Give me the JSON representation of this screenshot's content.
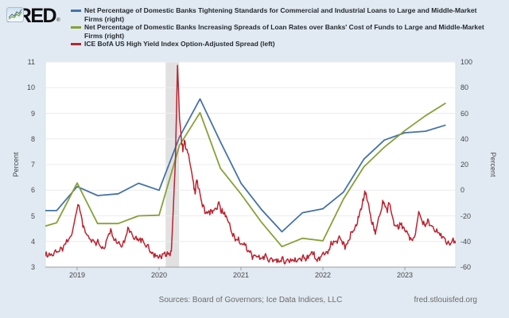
{
  "logo": {
    "text": "FRED",
    "registered": "®"
  },
  "footer": {
    "sources": "Sources: Board of Governors; Ice Data Indices, LLC",
    "site": "fred.stlouisfed.org"
  },
  "chart_data": {
    "type": "line",
    "x_domain": [
      2018.612,
      2023.621
    ],
    "x_ticks": [
      {
        "label": "2019",
        "t": 2019
      },
      {
        "label": "2020",
        "t": 2020
      },
      {
        "label": "2021",
        "t": 2021
      },
      {
        "label": "2022",
        "t": 2022
      },
      {
        "label": "2023",
        "t": 2023
      }
    ],
    "left_axis": {
      "title": "Percent",
      "min": 3,
      "max": 11,
      "ticks": [
        11,
        10,
        9,
        8,
        7,
        6,
        5,
        4,
        3
      ]
    },
    "right_axis": {
      "title": "Percent",
      "min": -60,
      "max": 100,
      "ticks": [
        100,
        80,
        60,
        40,
        20,
        0,
        -20,
        -40,
        -60
      ]
    },
    "recession_band": {
      "from": 2020.08,
      "to": 2020.245
    },
    "grid": true,
    "legend_position": "top",
    "series": [
      {
        "label": "Net Percentage of Domestic Banks Tightening Standards for Commercial and Industrial Loans to Large and Middle-Market Firms (right)",
        "color": "#4572a7",
        "axis": "right",
        "width": 1.8,
        "data": [
          [
            2018.61,
            -15.9
          ],
          [
            2018.75,
            -15.9
          ],
          [
            2019.0,
            2.8
          ],
          [
            2019.25,
            -4.2
          ],
          [
            2019.5,
            -2.8
          ],
          [
            2019.75,
            5.4
          ],
          [
            2020.0,
            0.0
          ],
          [
            2020.25,
            41.5
          ],
          [
            2020.5,
            71.2
          ],
          [
            2020.75,
            37.7
          ],
          [
            2021.0,
            5.5
          ],
          [
            2021.25,
            -15.1
          ],
          [
            2021.5,
            -32.4
          ],
          [
            2021.75,
            -17.6
          ],
          [
            2022.0,
            -14.5
          ],
          [
            2022.25,
            -1.5
          ],
          [
            2022.5,
            24.2
          ],
          [
            2022.75,
            39.1
          ],
          [
            2023.0,
            44.8
          ],
          [
            2023.25,
            46.0
          ],
          [
            2023.5,
            50.8
          ]
        ]
      },
      {
        "label": "Net Percentage of Domestic Banks Increasing Spreads of Loan Rates over Banks' Cost of Funds to Large and Middle-Market Firms (right)",
        "color": "#86a137",
        "axis": "right",
        "width": 1.8,
        "data": [
          [
            2018.61,
            -28
          ],
          [
            2018.75,
            -25.4
          ],
          [
            2019.0,
            5.6
          ],
          [
            2019.25,
            -26
          ],
          [
            2019.5,
            -26
          ],
          [
            2019.75,
            -20
          ],
          [
            2020.0,
            -19.5
          ],
          [
            2020.25,
            35
          ],
          [
            2020.5,
            60.5
          ],
          [
            2020.75,
            17
          ],
          [
            2021.0,
            -3
          ],
          [
            2021.25,
            -25
          ],
          [
            2021.5,
            -44
          ],
          [
            2021.75,
            -37.5
          ],
          [
            2022.0,
            -39.5
          ],
          [
            2022.25,
            -7
          ],
          [
            2022.5,
            18.2
          ],
          [
            2022.75,
            33.6
          ],
          [
            2023.0,
            46.5
          ],
          [
            2023.25,
            58
          ],
          [
            2023.5,
            68
          ]
        ]
      },
      {
        "label": "ICE BofA US High Yield Index Option-Adjusted Spread (left)",
        "color": "#bc2330",
        "axis": "left",
        "width": 1.5,
        "jitter": 0.05,
        "data": [
          [
            2018.61,
            3.42
          ],
          [
            2018.66,
            3.55
          ],
          [
            2018.71,
            3.45
          ],
          [
            2018.76,
            3.6
          ],
          [
            2018.81,
            3.75
          ],
          [
            2018.86,
            3.9
          ],
          [
            2018.91,
            4.15
          ],
          [
            2018.95,
            4.5
          ],
          [
            2019.01,
            5.44
          ],
          [
            2019.06,
            4.85
          ],
          [
            2019.1,
            4.35
          ],
          [
            2019.15,
            4.1
          ],
          [
            2019.2,
            4.05
          ],
          [
            2019.24,
            3.95
          ],
          [
            2019.29,
            3.78
          ],
          [
            2019.33,
            3.72
          ],
          [
            2019.38,
            4.25
          ],
          [
            2019.42,
            4.4
          ],
          [
            2019.46,
            4.05
          ],
          [
            2019.5,
            3.95
          ],
          [
            2019.54,
            3.78
          ],
          [
            2019.59,
            4.15
          ],
          [
            2019.63,
            4.5
          ],
          [
            2019.67,
            4.28
          ],
          [
            2019.71,
            4.15
          ],
          [
            2019.75,
            4.02
          ],
          [
            2019.79,
            4.12
          ],
          [
            2019.83,
            3.85
          ],
          [
            2019.88,
            3.68
          ],
          [
            2019.92,
            3.58
          ],
          [
            2019.96,
            3.42
          ],
          [
            2020.0,
            3.38
          ],
          [
            2020.04,
            3.52
          ],
          [
            2020.08,
            3.42
          ],
          [
            2020.12,
            3.55
          ],
          [
            2020.15,
            3.62
          ],
          [
            2020.17,
            5.0
          ],
          [
            2020.2,
            7.2
          ],
          [
            2020.225,
            10.87
          ],
          [
            2020.25,
            8.8
          ],
          [
            2020.27,
            8.1
          ],
          [
            2020.29,
            7.5
          ],
          [
            2020.31,
            7.95
          ],
          [
            2020.34,
            7.6
          ],
          [
            2020.38,
            7.0
          ],
          [
            2020.42,
            6.3
          ],
          [
            2020.44,
            5.85
          ],
          [
            2020.46,
            6.4
          ],
          [
            2020.49,
            6.05
          ],
          [
            2020.53,
            5.35
          ],
          [
            2020.57,
            5.1
          ],
          [
            2020.61,
            5.2
          ],
          [
            2020.65,
            5.1
          ],
          [
            2020.69,
            5.3
          ],
          [
            2020.73,
            5.55
          ],
          [
            2020.76,
            5.1
          ],
          [
            2020.8,
            5.15
          ],
          [
            2020.84,
            4.8
          ],
          [
            2020.88,
            4.4
          ],
          [
            2020.92,
            4.2
          ],
          [
            2020.96,
            4.05
          ],
          [
            2021.0,
            3.9
          ],
          [
            2021.04,
            3.95
          ],
          [
            2021.08,
            3.6
          ],
          [
            2021.13,
            3.5
          ],
          [
            2021.17,
            3.45
          ],
          [
            2021.21,
            3.4
          ],
          [
            2021.25,
            3.35
          ],
          [
            2021.29,
            3.45
          ],
          [
            2021.33,
            3.25
          ],
          [
            2021.38,
            3.32
          ],
          [
            2021.42,
            3.28
          ],
          [
            2021.46,
            3.2
          ],
          [
            2021.5,
            3.38
          ],
          [
            2021.54,
            3.14
          ],
          [
            2021.58,
            3.26
          ],
          [
            2021.63,
            3.3
          ],
          [
            2021.67,
            3.22
          ],
          [
            2021.71,
            3.32
          ],
          [
            2021.75,
            3.42
          ],
          [
            2021.79,
            3.24
          ],
          [
            2021.83,
            3.46
          ],
          [
            2021.87,
            3.6
          ],
          [
            2021.9,
            3.36
          ],
          [
            2021.94,
            3.34
          ],
          [
            2021.98,
            3.42
          ],
          [
            2022.03,
            3.52
          ],
          [
            2022.07,
            3.68
          ],
          [
            2022.11,
            3.88
          ],
          [
            2022.15,
            4.0
          ],
          [
            2022.2,
            4.22
          ],
          [
            2022.24,
            3.88
          ],
          [
            2022.28,
            3.86
          ],
          [
            2022.32,
            4.05
          ],
          [
            2022.36,
            4.35
          ],
          [
            2022.4,
            4.65
          ],
          [
            2022.44,
            4.95
          ],
          [
            2022.48,
            5.45
          ],
          [
            2022.51,
            5.97
          ],
          [
            2022.54,
            5.6
          ],
          [
            2022.58,
            5.05
          ],
          [
            2022.62,
            4.55
          ],
          [
            2022.64,
            4.28
          ],
          [
            2022.68,
            4.95
          ],
          [
            2022.72,
            5.3
          ],
          [
            2022.74,
            5.55
          ],
          [
            2022.78,
            5.25
          ],
          [
            2022.81,
            5.48
          ],
          [
            2022.85,
            4.95
          ],
          [
            2022.89,
            4.6
          ],
          [
            2022.93,
            4.52
          ],
          [
            2022.96,
            4.72
          ],
          [
            2023.0,
            4.42
          ],
          [
            2023.04,
            4.28
          ],
          [
            2023.08,
            4.08
          ],
          [
            2023.13,
            4.3
          ],
          [
            2023.17,
            5.17
          ],
          [
            2023.21,
            4.8
          ],
          [
            2023.25,
            4.58
          ],
          [
            2023.29,
            4.82
          ],
          [
            2023.33,
            4.6
          ],
          [
            2023.38,
            4.38
          ],
          [
            2023.42,
            4.33
          ],
          [
            2023.46,
            4.18
          ],
          [
            2023.5,
            3.98
          ],
          [
            2023.54,
            3.92
          ],
          [
            2023.58,
            4.06
          ],
          [
            2023.62,
            3.93
          ]
        ]
      }
    ]
  }
}
